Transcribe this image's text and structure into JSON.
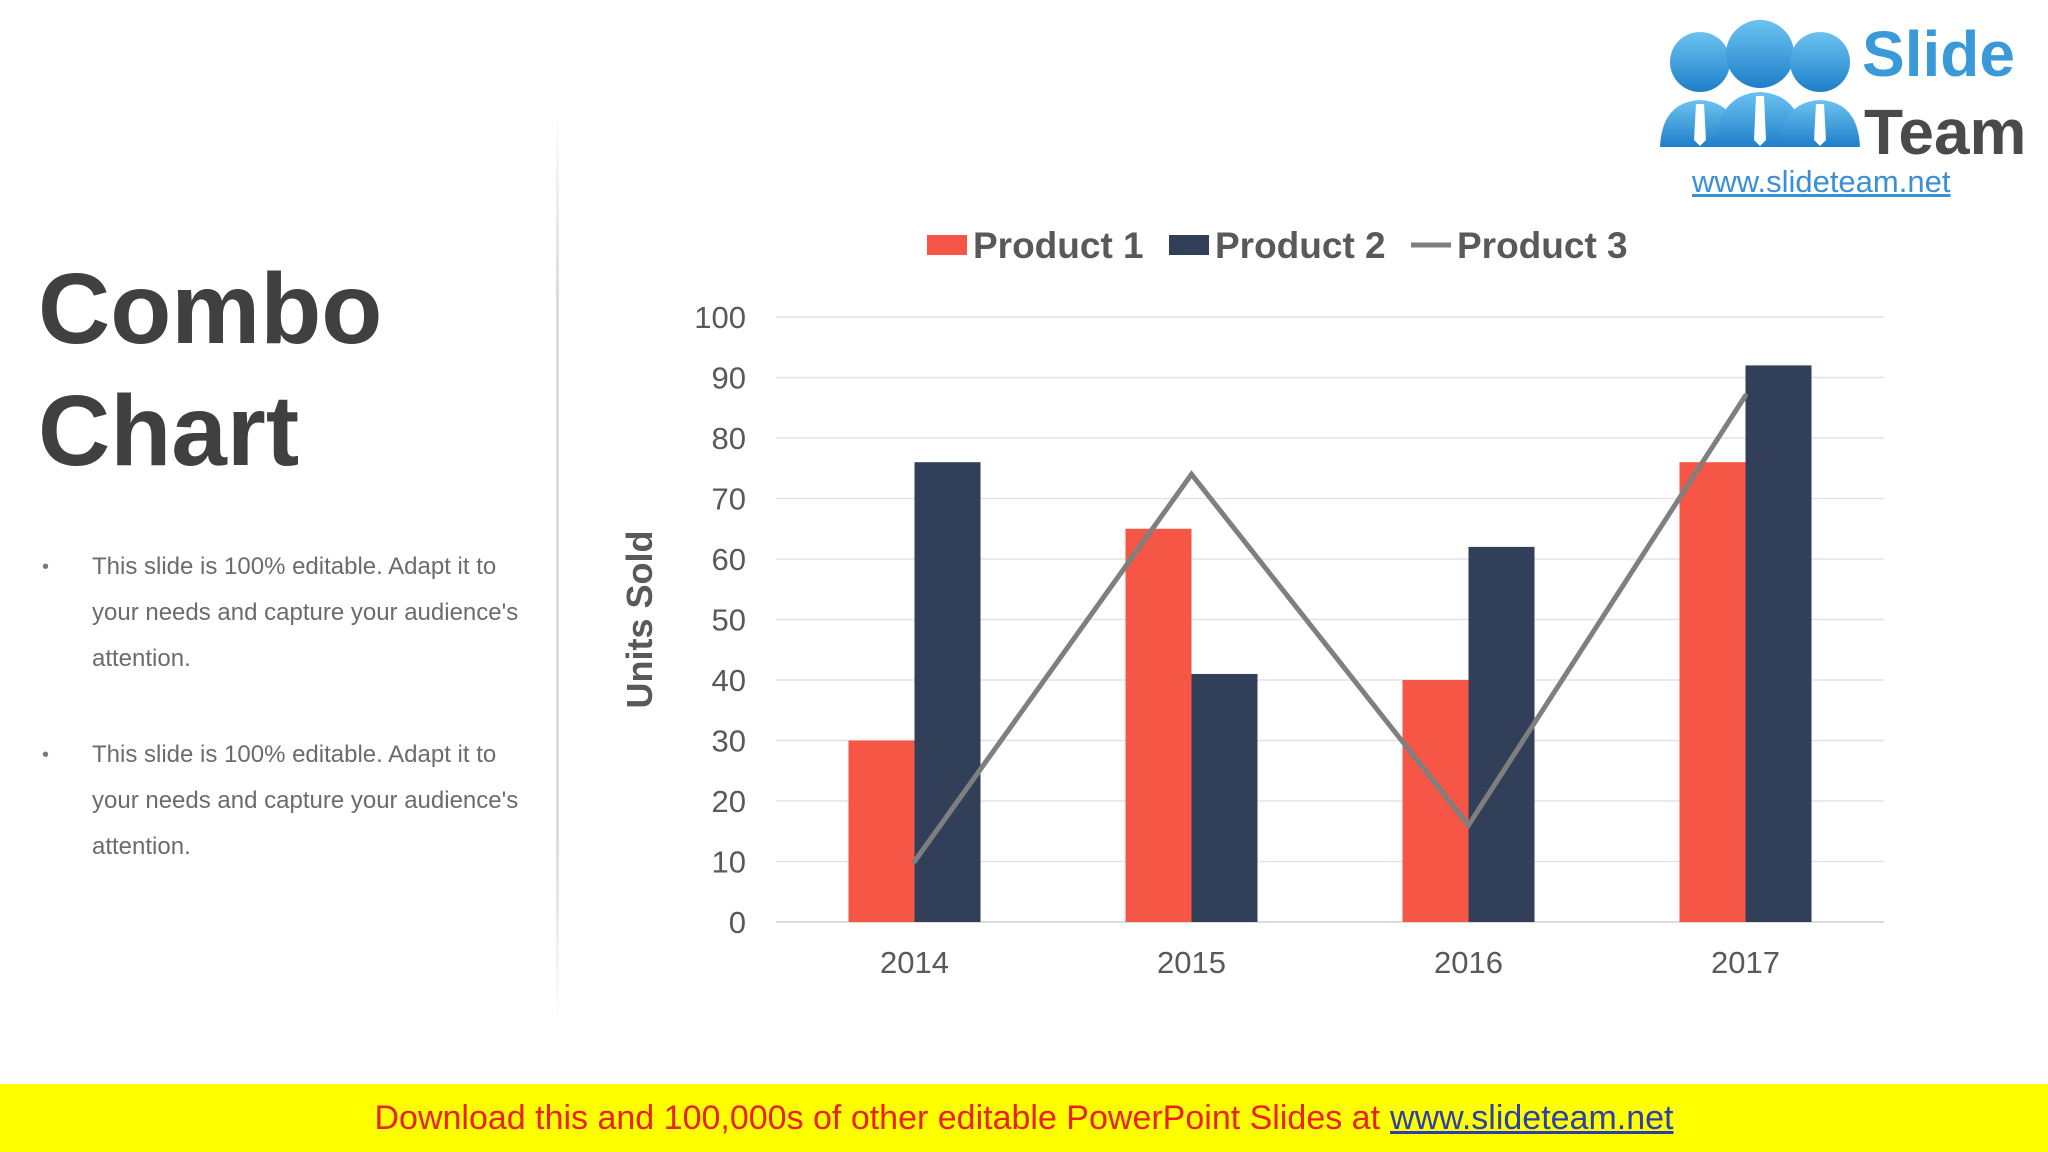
{
  "slide": {
    "title_line1": "Combo",
    "title_line2": "Chart",
    "bullets": [
      {
        "line1": "This slide is 100% editable. Adapt it to",
        "line2": "your needs and capture your audience's",
        "line3": "attention."
      },
      {
        "line1": "This slide is 100% editable. Adapt it to",
        "line2": "your needs and capture your audience's",
        "line3": "attention."
      }
    ],
    "bullet_char": "•"
  },
  "logo": {
    "word1": "Slide",
    "word2": "Team",
    "url": "www.slideteam.net",
    "colors": {
      "blue": "#3a9ad9",
      "dark": "#4a4a4a"
    }
  },
  "footer": {
    "text": "Download this and 100,000s of other editable PowerPoint Slides at",
    "link": "www.slideteam.net"
  },
  "chart_data": {
    "type": "bar",
    "categories": [
      "2014",
      "2015",
      "2016",
      "2017"
    ],
    "series": [
      {
        "name": "Product 1",
        "type": "bar",
        "color": "#f55646",
        "values": [
          30,
          65,
          40,
          76
        ]
      },
      {
        "name": "Product 2",
        "type": "bar",
        "color": "#323f58",
        "values": [
          76,
          41,
          62,
          92
        ]
      },
      {
        "name": "Product 3",
        "type": "line",
        "color": "#7f7f7f",
        "values": [
          10,
          74,
          16,
          87
        ]
      }
    ],
    "ylabel": "Units Sold",
    "ylim": [
      0,
      100
    ],
    "yticks": [
      0,
      10,
      20,
      30,
      40,
      50,
      60,
      70,
      80,
      90,
      100
    ],
    "grid": true,
    "legend": "top"
  }
}
